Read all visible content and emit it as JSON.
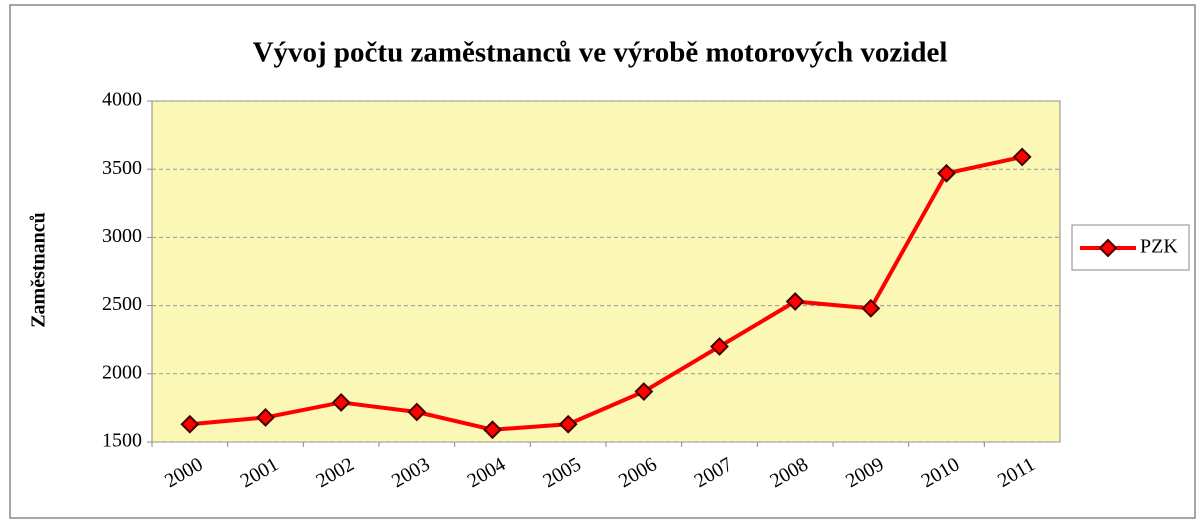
{
  "chart_data": {
    "type": "line",
    "title": "Vývoj počtu zaměstnanců ve výrobě motorových vozidel",
    "y_label": "Zaměstnanců",
    "categories": [
      "2000",
      "2001",
      "2002",
      "2003",
      "2004",
      "2005",
      "2006",
      "2007",
      "2008",
      "2009",
      "2010",
      "2011"
    ],
    "series": [
      {
        "name": "PZK",
        "color": "#ff0000",
        "values": [
          1630,
          1680,
          1790,
          1720,
          1590,
          1630,
          1870,
          2200,
          2530,
          2480,
          3470,
          3590
        ]
      }
    ],
    "ylim": [
      1500,
      4000
    ],
    "yticks": [
      1500,
      2000,
      2500,
      3000,
      3500,
      4000
    ],
    "grid": true,
    "legend": "right"
  }
}
